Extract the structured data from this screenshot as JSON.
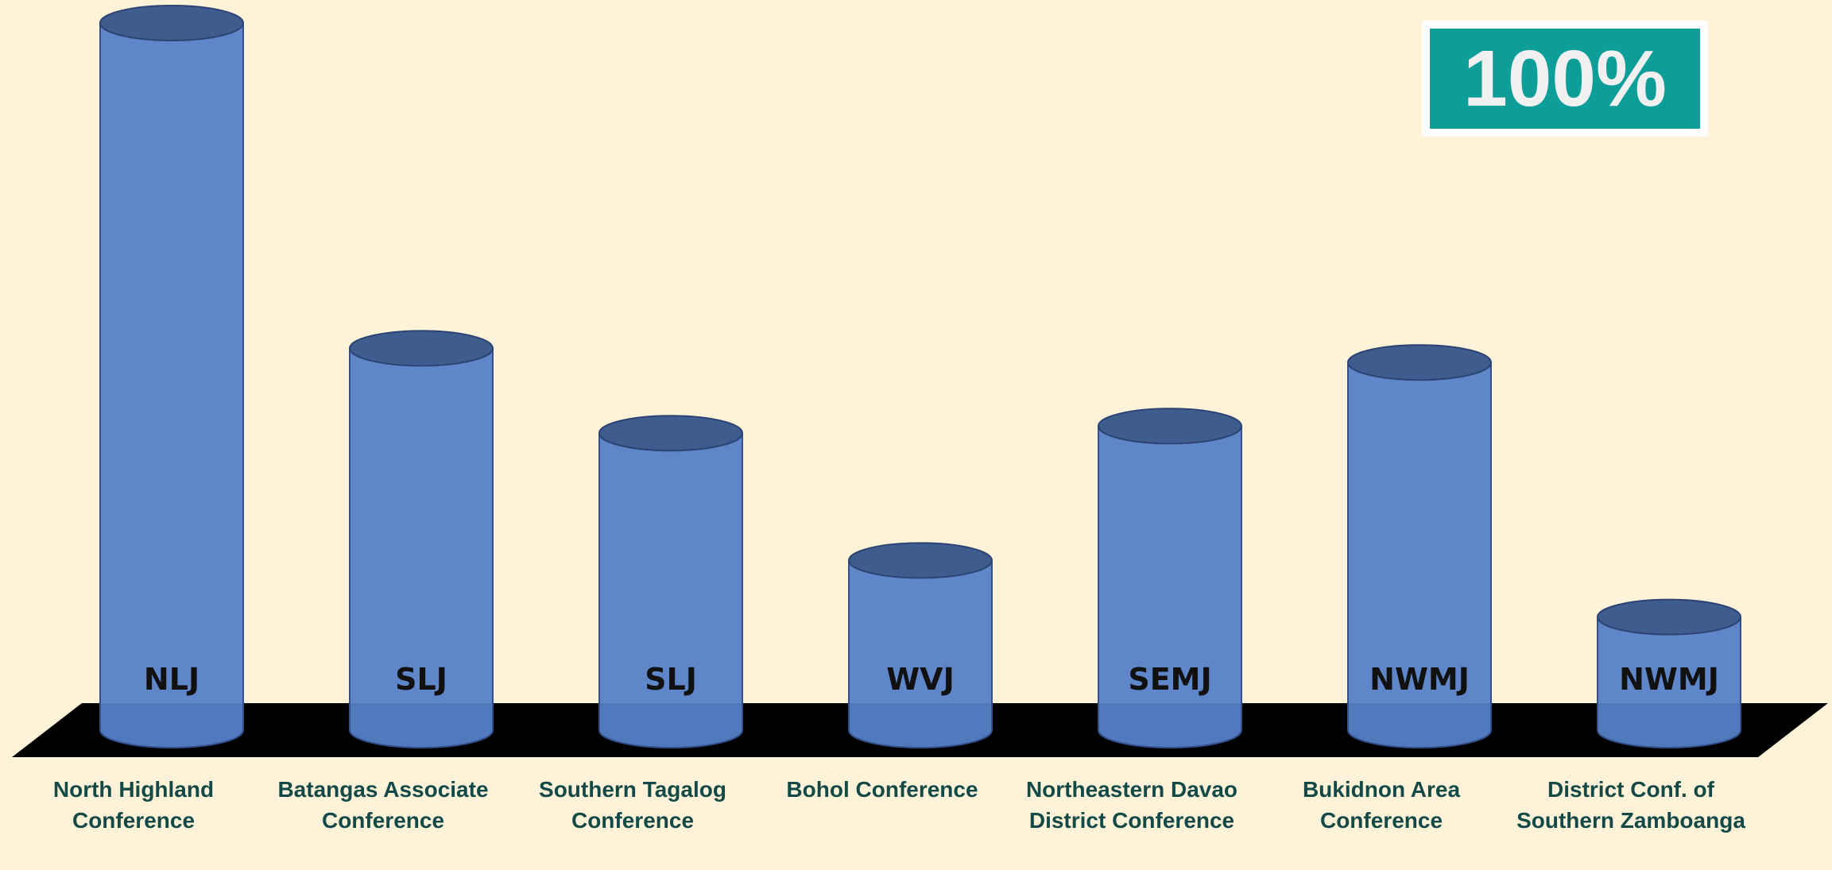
{
  "chart_data": {
    "type": "cylinder-bar",
    "categories": [
      "North Highland Conference",
      "Batangas Associate Conference",
      "Southern Tagalog Conference",
      "Bohol Conference",
      "Northeastern Davao District Conference",
      "Bukidnon Area Conference",
      "District Conf. of Southern Zamboanga"
    ],
    "values": [
      100,
      54,
      42,
      24,
      43,
      52,
      16
    ],
    "bar_labels": [
      "NLJ",
      "SLJ",
      "SLJ",
      "WVJ",
      "SEMJ",
      "NWMJ",
      "NWMJ"
    ],
    "color": "#5580c8",
    "ylim": [
      0,
      100
    ],
    "badge": "100%"
  }
}
